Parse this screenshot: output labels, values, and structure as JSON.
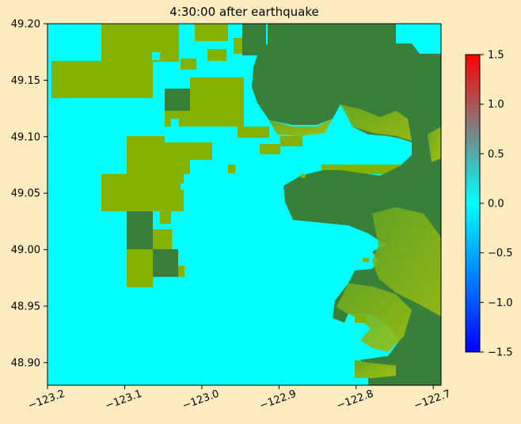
{
  "chart_data": {
    "type": "heatmap",
    "title": "4:30:00 after earthquake",
    "xlabel": "",
    "ylabel": "",
    "xlim": [
      -123.2,
      -122.69
    ],
    "ylim": [
      48.88,
      49.2
    ],
    "x_ticks": [
      -123.2,
      -123.1,
      -123.0,
      -122.9,
      -122.8,
      -122.7
    ],
    "x_tick_labels": [
      "−123.2",
      "−123.1",
      "−123.0",
      "−122.9",
      "−122.8",
      "−122.7"
    ],
    "y_ticks": [
      48.9,
      48.95,
      49.0,
      49.05,
      49.1,
      49.15,
      49.2
    ],
    "y_tick_labels": [
      "48.90",
      "48.95",
      "49.00",
      "49.05",
      "49.10",
      "49.15",
      "49.20"
    ],
    "colorbar": {
      "range": [
        -1.5,
        1.5
      ],
      "ticks": [
        -1.5,
        -1.0,
        -0.5,
        0.0,
        0.5,
        1.0,
        1.5
      ],
      "tick_labels": [
        "−1.5",
        "−1.0",
        "−0.5",
        "0.0",
        "0.5",
        "1.0",
        "1.5"
      ],
      "colors": [
        "#0000ff",
        "#00ffff",
        "#ff0000"
      ]
    },
    "water_color": "#00ffff",
    "land_colors": {
      "dark": "#38803a",
      "light": "#84b000"
    }
  }
}
